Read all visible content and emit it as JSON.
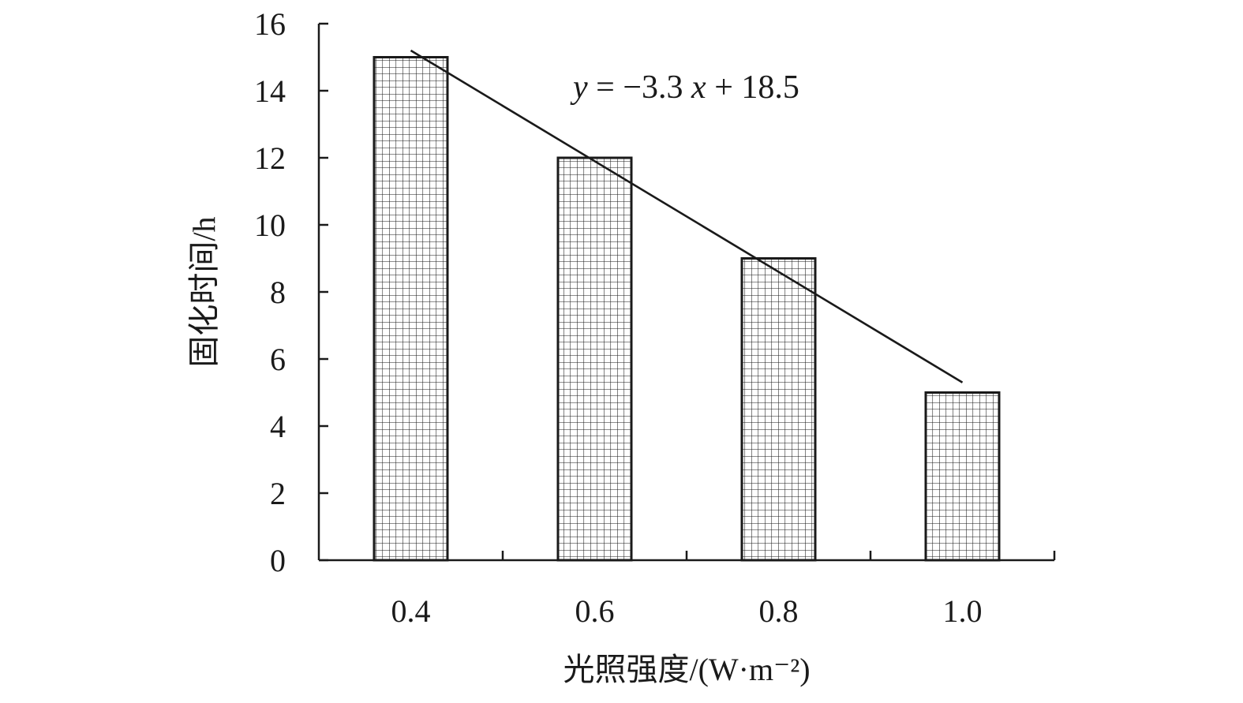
{
  "chart_data": {
    "type": "bar",
    "categories": [
      "0.4",
      "0.6",
      "0.8",
      "1.0"
    ],
    "values": [
      15,
      12,
      9,
      5
    ],
    "xlabel": "光照强度/(W·m⁻²)",
    "ylabel": "固化时间/h",
    "ylim": [
      0,
      16
    ],
    "yticks": [
      "0",
      "2",
      "4",
      "6",
      "8",
      "10",
      "12",
      "14",
      "16"
    ],
    "bar_fill": "grid-hatch",
    "grid": false,
    "trendline": {
      "type": "linear",
      "slope": -3.3,
      "intercept": 18.5,
      "equation_parts": {
        "y": "y",
        "mid": " = −3.3",
        "x": "x",
        "tail": " + 18.5"
      }
    },
    "colors": {
      "axis": "#1a1a1a",
      "bar_stroke": "#1a1a1a",
      "hatch": "#1a1a1a",
      "background": "#ffffff"
    }
  }
}
